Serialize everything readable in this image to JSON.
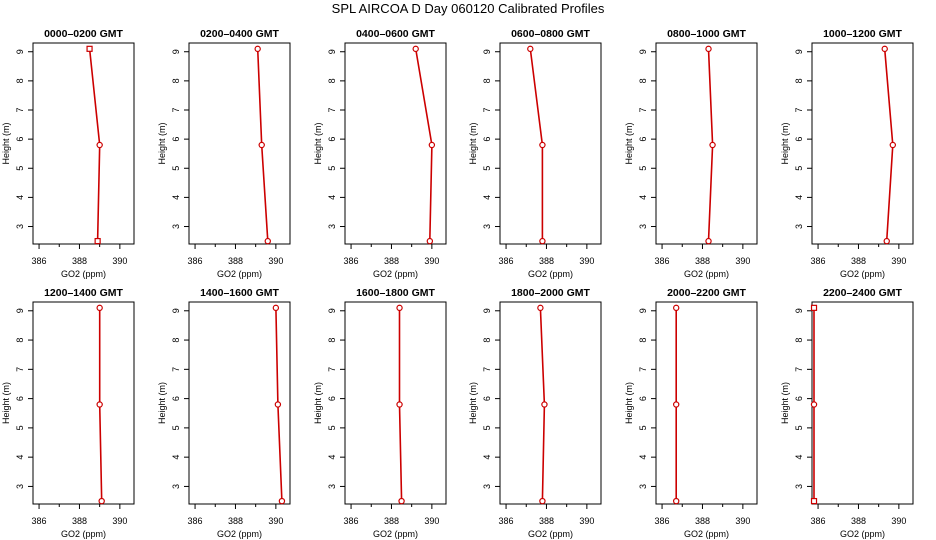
{
  "title": "SPL AIRCOA D  Day 060120  Calibrated Profiles",
  "colors": {
    "line": "#cc0000",
    "marker": "#cc0000",
    "axis": "#000000"
  },
  "chart_data": [
    {
      "type": "line",
      "title": "0000–0200 GMT",
      "xlabel": "GO2 (ppm)",
      "ylabel": "Height (m)",
      "xlim": [
        385.7,
        390.7
      ],
      "ylim": [
        2.4,
        9.3
      ],
      "xticks": [
        "386",
        "388",
        "390"
      ],
      "yticks": [
        "3",
        "4",
        "5",
        "6",
        "7",
        "8",
        "9"
      ],
      "series": [
        {
          "marker": "mixed",
          "x": [
            388.5,
            389.0,
            388.9
          ],
          "y": [
            9.1,
            5.8,
            2.5
          ]
        }
      ]
    },
    {
      "type": "line",
      "title": "0200–0400 GMT",
      "xlabel": "GO2 (ppm)",
      "ylabel": "Height (m)",
      "xlim": [
        385.7,
        390.7
      ],
      "ylim": [
        2.4,
        9.3
      ],
      "xticks": [
        "386",
        "388",
        "390"
      ],
      "yticks": [
        "3",
        "4",
        "5",
        "6",
        "7",
        "8",
        "9"
      ],
      "series": [
        {
          "marker": "circle",
          "x": [
            389.1,
            389.3,
            389.6
          ],
          "y": [
            9.1,
            5.8,
            2.5
          ]
        }
      ]
    },
    {
      "type": "line",
      "title": "0400–0600 GMT",
      "xlabel": "GO2 (ppm)",
      "ylabel": "Height (m)",
      "xlim": [
        385.7,
        390.7
      ],
      "ylim": [
        2.4,
        9.3
      ],
      "xticks": [
        "386",
        "388",
        "390"
      ],
      "yticks": [
        "3",
        "4",
        "5",
        "6",
        "7",
        "8",
        "9"
      ],
      "series": [
        {
          "marker": "circle",
          "x": [
            389.2,
            390.0,
            389.9
          ],
          "y": [
            9.1,
            5.8,
            2.5
          ]
        }
      ]
    },
    {
      "type": "line",
      "title": "0600–0800 GMT",
      "xlabel": "GO2 (ppm)",
      "ylabel": "Height (m)",
      "xlim": [
        385.7,
        390.7
      ],
      "ylim": [
        2.4,
        9.3
      ],
      "xticks": [
        "386",
        "388",
        "390"
      ],
      "yticks": [
        "3",
        "4",
        "5",
        "6",
        "7",
        "8",
        "9"
      ],
      "series": [
        {
          "marker": "circle",
          "x": [
            387.2,
            387.8,
            387.8
          ],
          "y": [
            9.1,
            5.8,
            2.5
          ]
        }
      ]
    },
    {
      "type": "line",
      "title": "0800–1000 GMT",
      "xlabel": "GO2 (ppm)",
      "ylabel": "Height (m)",
      "xlim": [
        385.7,
        390.7
      ],
      "ylim": [
        2.4,
        9.3
      ],
      "xticks": [
        "386",
        "388",
        "390"
      ],
      "yticks": [
        "3",
        "4",
        "5",
        "6",
        "7",
        "8",
        "9"
      ],
      "series": [
        {
          "marker": "circle",
          "x": [
            388.3,
            388.5,
            388.3
          ],
          "y": [
            9.1,
            5.8,
            2.5
          ]
        }
      ]
    },
    {
      "type": "line",
      "title": "1000–1200 GMT",
      "xlabel": "GO2 (ppm)",
      "ylabel": "Height (m)",
      "xlim": [
        385.7,
        390.7
      ],
      "ylim": [
        2.4,
        9.3
      ],
      "xticks": [
        "386",
        "388",
        "390"
      ],
      "yticks": [
        "3",
        "4",
        "5",
        "6",
        "7",
        "8",
        "9"
      ],
      "series": [
        {
          "marker": "circle",
          "x": [
            389.3,
            389.7,
            389.4
          ],
          "y": [
            9.1,
            5.8,
            2.5
          ]
        }
      ]
    },
    {
      "type": "line",
      "title": "1200–1400 GMT",
      "xlabel": "GO2 (ppm)",
      "ylabel": "Height (m)",
      "xlim": [
        385.7,
        390.7
      ],
      "ylim": [
        2.4,
        9.3
      ],
      "xticks": [
        "386",
        "388",
        "390"
      ],
      "yticks": [
        "3",
        "4",
        "5",
        "6",
        "7",
        "8",
        "9"
      ],
      "series": [
        {
          "marker": "circle",
          "x": [
            389.0,
            389.0,
            389.1
          ],
          "y": [
            9.1,
            5.8,
            2.5
          ]
        }
      ]
    },
    {
      "type": "line",
      "title": "1400–1600 GMT",
      "xlabel": "GO2 (ppm)",
      "ylabel": "Height (m)",
      "xlim": [
        385.7,
        390.7
      ],
      "ylim": [
        2.4,
        9.3
      ],
      "xticks": [
        "386",
        "388",
        "390"
      ],
      "yticks": [
        "3",
        "4",
        "5",
        "6",
        "7",
        "8",
        "9"
      ],
      "series": [
        {
          "marker": "circle",
          "x": [
            390.0,
            390.1,
            390.3
          ],
          "y": [
            9.1,
            5.8,
            2.5
          ]
        }
      ]
    },
    {
      "type": "line",
      "title": "1600–1800 GMT",
      "xlabel": "GO2 (ppm)",
      "ylabel": "Height (m)",
      "xlim": [
        385.7,
        390.7
      ],
      "ylim": [
        2.4,
        9.3
      ],
      "xticks": [
        "386",
        "388",
        "390"
      ],
      "yticks": [
        "3",
        "4",
        "5",
        "6",
        "7",
        "8",
        "9"
      ],
      "series": [
        {
          "marker": "circle",
          "x": [
            388.4,
            388.4,
            388.5
          ],
          "y": [
            9.1,
            5.8,
            2.5
          ]
        }
      ]
    },
    {
      "type": "line",
      "title": "1800–2000 GMT",
      "xlabel": "GO2 (ppm)",
      "ylabel": "Height (m)",
      "xlim": [
        385.7,
        390.7
      ],
      "ylim": [
        2.4,
        9.3
      ],
      "xticks": [
        "386",
        "388",
        "390"
      ],
      "yticks": [
        "3",
        "4",
        "5",
        "6",
        "7",
        "8",
        "9"
      ],
      "series": [
        {
          "marker": "circle",
          "x": [
            387.7,
            387.9,
            387.8
          ],
          "y": [
            9.1,
            5.8,
            2.5
          ]
        }
      ]
    },
    {
      "type": "line",
      "title": "2000–2200 GMT",
      "xlabel": "GO2 (ppm)",
      "ylabel": "Height (m)",
      "xlim": [
        385.7,
        390.7
      ],
      "ylim": [
        2.4,
        9.3
      ],
      "xticks": [
        "386",
        "388",
        "390"
      ],
      "yticks": [
        "3",
        "4",
        "5",
        "6",
        "7",
        "8",
        "9"
      ],
      "series": [
        {
          "marker": "circle",
          "x": [
            386.7,
            386.7,
            386.7
          ],
          "y": [
            9.1,
            5.8,
            2.5
          ]
        }
      ]
    },
    {
      "type": "line",
      "title": "2200–2400 GMT",
      "xlabel": "GO2 (ppm)",
      "ylabel": "Height (m)",
      "xlim": [
        385.7,
        390.7
      ],
      "ylim": [
        2.4,
        9.3
      ],
      "xticks": [
        "386",
        "388",
        "390"
      ],
      "yticks": [
        "3",
        "4",
        "5",
        "6",
        "7",
        "8",
        "9"
      ],
      "series": [
        {
          "marker": "mixed",
          "x": [
            385.8,
            385.8,
            385.8
          ],
          "y": [
            9.1,
            5.8,
            2.5
          ]
        }
      ]
    }
  ]
}
